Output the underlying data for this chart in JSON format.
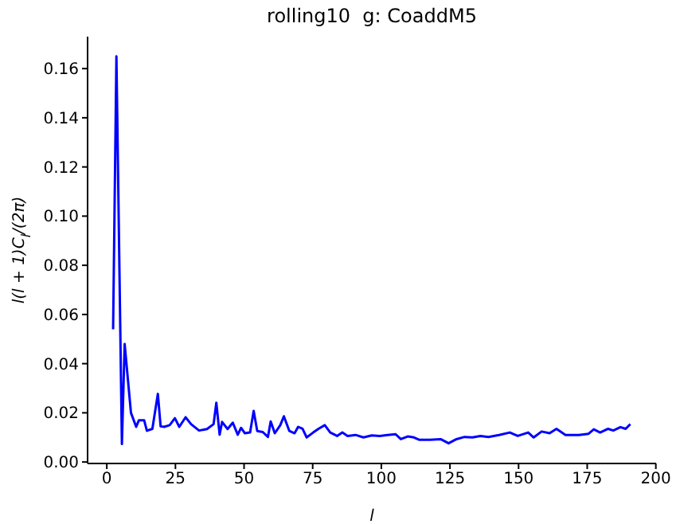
{
  "chart_data": {
    "type": "line",
    "title": "rolling10  g: CoaddM5",
    "xlabel": "l",
    "ylabel": "l(l + 1)C$_{l}$/(2π)",
    "x": [
      2.3,
      3.5,
      5.5,
      6.5,
      8.8,
      10.7,
      11.7,
      13.6,
      14.6,
      16.6,
      18.6,
      19.6,
      20.9,
      22.9,
      24.8,
      26.4,
      28.7,
      30.7,
      33.6,
      36.5,
      38.9,
      39.9,
      41.1,
      42.0,
      44.0,
      45.9,
      47.7,
      48.9,
      50.3,
      52.2,
      53.5,
      54.8,
      56.8,
      58.7,
      59.7,
      61.2,
      63.2,
      64.5,
      66.5,
      68.4,
      69.7,
      71.3,
      72.8,
      75.2,
      77.1,
      79.4,
      81.4,
      83.9,
      85.8,
      87.7,
      90.6,
      93.5,
      96.5,
      99.4,
      102.3,
      105.2,
      107.1,
      109.6,
      111.9,
      113.9,
      117.7,
      121.6,
      124.5,
      127.4,
      130.3,
      133.2,
      136.1,
      139.0,
      142.9,
      146.8,
      149.7,
      153.5,
      155.5,
      158.4,
      161.3,
      163.8,
      167.1,
      172.0,
      175.5,
      177.4,
      179.7,
      182.6,
      184.5,
      187.1,
      189.0,
      190.7
    ],
    "series": [
      {
        "color": "#0000ff",
        "values": [
          0.054,
          0.165,
          0.0073,
          0.048,
          0.02,
          0.0143,
          0.017,
          0.017,
          0.0127,
          0.0135,
          0.0277,
          0.0145,
          0.0143,
          0.015,
          0.0178,
          0.0143,
          0.0182,
          0.0154,
          0.0128,
          0.0134,
          0.0154,
          0.0241,
          0.0111,
          0.0163,
          0.0134,
          0.016,
          0.0111,
          0.0139,
          0.0117,
          0.012,
          0.0208,
          0.0126,
          0.0122,
          0.0102,
          0.0165,
          0.0117,
          0.015,
          0.0186,
          0.0126,
          0.0117,
          0.0143,
          0.0135,
          0.01,
          0.012,
          0.0135,
          0.015,
          0.012,
          0.0106,
          0.012,
          0.0106,
          0.011,
          0.01,
          0.0108,
          0.0106,
          0.011,
          0.0113,
          0.0093,
          0.0104,
          0.01,
          0.009,
          0.009,
          0.0093,
          0.0076,
          0.0093,
          0.0102,
          0.01,
          0.0106,
          0.0102,
          0.011,
          0.012,
          0.0106,
          0.012,
          0.01,
          0.0124,
          0.0117,
          0.0135,
          0.011,
          0.011,
          0.0115,
          0.0133,
          0.012,
          0.0135,
          0.0128,
          0.0142,
          0.0135,
          0.0154
        ]
      }
    ],
    "xlim": [
      -7,
      200.1
    ],
    "xticks": [
      0,
      25,
      50,
      75,
      100,
      125,
      150,
      175,
      200
    ],
    "ylim": [
      -0.0006,
      0.173
    ],
    "yticks": [
      {
        "value": 0,
        "label": "0.00"
      },
      {
        "value": 0.02,
        "label": "0.02"
      },
      {
        "value": 0.04,
        "label": "0.04"
      },
      {
        "value": 0.06,
        "label": "0.06"
      },
      {
        "value": 0.08,
        "label": "0.08"
      },
      {
        "value": 0.1,
        "label": "0.10"
      },
      {
        "value": 0.12,
        "label": "0.12"
      },
      {
        "value": 0.14,
        "label": "0.14"
      },
      {
        "value": 0.16,
        "label": "0.16"
      }
    ],
    "grid": false,
    "legend": false,
    "marker": "none",
    "line_style": "solid"
  }
}
